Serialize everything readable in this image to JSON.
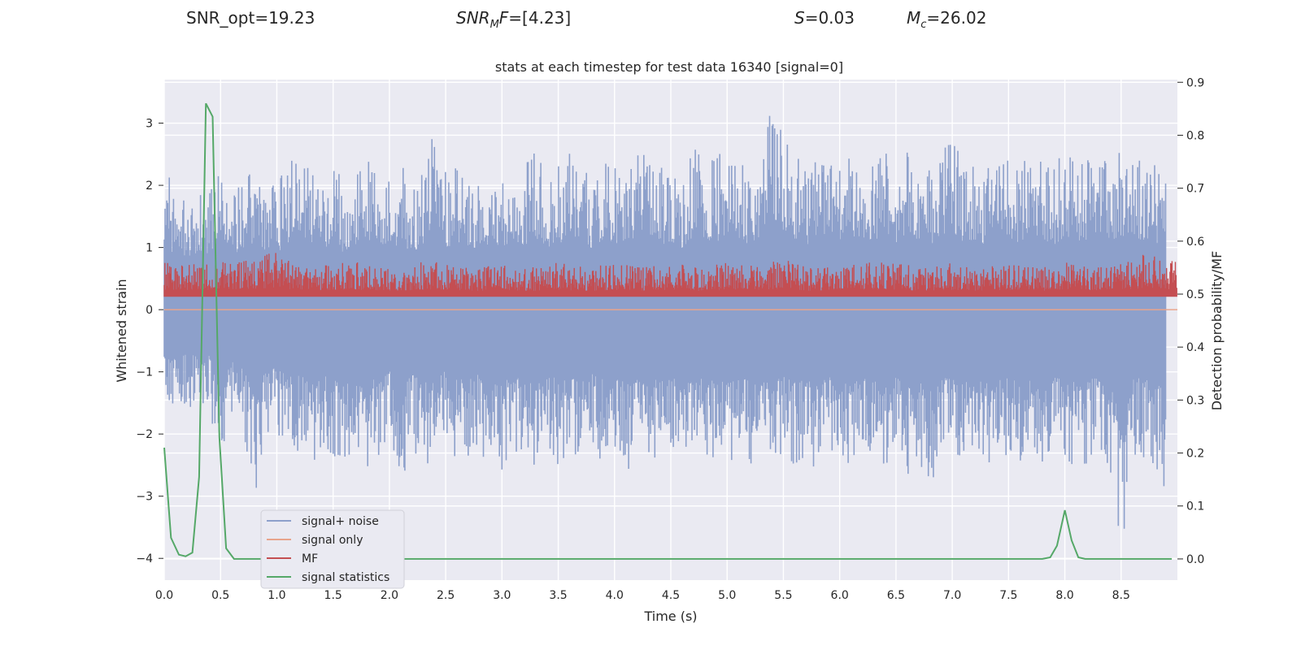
{
  "header": {
    "snr_opt": "SNR_opt=19.23",
    "snr_mf_value": "=[4.23]",
    "s_value": "=0.03",
    "mc_value": "=26.02"
  },
  "chart_data": {
    "type": "line",
    "title": "stats at each timestep for test data 16340 [signal=0]",
    "xlabel": "Time (s)",
    "ylabel": "Whitened strain",
    "y2label": "Detection probability/MF",
    "xlim": [
      0,
      9.0
    ],
    "ylim": [
      -4.35,
      3.7
    ],
    "y2lim": [
      -0.04,
      0.905
    ],
    "xticks": [
      "0.0",
      "0.5",
      "1.0",
      "1.5",
      "2.0",
      "2.5",
      "3.0",
      "3.5",
      "4.0",
      "4.5",
      "5.0",
      "5.5",
      "6.0",
      "6.5",
      "7.0",
      "7.5",
      "8.0",
      "8.5"
    ],
    "yticks": [
      "3",
      "2",
      "1",
      "0",
      "−1",
      "−2",
      "−3",
      "−4"
    ],
    "y2ticks": [
      "0.9",
      "0.8",
      "0.7",
      "0.6",
      "0.5",
      "0.4",
      "0.3",
      "0.2",
      "0.1",
      "0.0"
    ],
    "grid": true,
    "legend": "lower-left",
    "series": [
      {
        "name": "signal+ noise",
        "axis": "left",
        "color": "#8da0cb",
        "description": "dense noise band roughly between -2.5 and 2.5",
        "x": [
          0.0,
          0.1,
          0.2,
          0.3,
          0.4,
          0.5,
          0.6,
          0.7,
          0.8,
          0.9,
          1.0,
          1.1,
          1.2,
          1.3,
          1.4,
          1.5,
          1.6,
          1.7,
          1.8,
          1.9,
          2.0,
          2.1,
          2.2,
          2.3,
          2.4,
          2.5,
          2.6,
          2.7,
          2.8,
          2.9,
          3.0,
          3.1,
          3.2,
          3.3,
          3.4,
          3.5,
          3.6,
          3.7,
          3.8,
          3.9,
          4.0,
          4.1,
          4.2,
          4.3,
          4.4,
          4.5,
          4.6,
          4.7,
          4.8,
          4.9,
          5.0,
          5.1,
          5.2,
          5.3,
          5.4,
          5.5,
          5.6,
          5.7,
          5.8,
          5.9,
          6.0,
          6.1,
          6.2,
          6.3,
          6.4,
          6.5,
          6.6,
          6.7,
          6.8,
          6.9,
          7.0,
          7.1,
          7.2,
          7.3,
          7.4,
          7.5,
          7.6,
          7.7,
          7.8,
          7.9,
          8.0,
          8.1,
          8.2,
          8.3,
          8.4,
          8.5,
          8.6,
          8.7,
          8.8,
          8.9
        ],
        "upper": [
          2.4,
          1.9,
          1.9,
          2.0,
          2.0,
          2.6,
          1.8,
          2.2,
          2.3,
          2.1,
          2.0,
          2.4,
          2.6,
          2.3,
          2.1,
          2.4,
          2.0,
          2.2,
          2.5,
          2.3,
          2.1,
          2.4,
          2.0,
          2.3,
          3.25,
          2.2,
          2.4,
          2.3,
          2.1,
          2.4,
          2.2,
          2.5,
          2.3,
          2.6,
          2.1,
          2.3,
          2.7,
          2.4,
          2.2,
          2.5,
          2.4,
          2.3,
          2.6,
          2.5,
          2.3,
          2.4,
          2.2,
          2.6,
          2.5,
          2.4,
          2.7,
          2.5,
          2.3,
          2.6,
          3.35,
          2.8,
          2.5,
          2.3,
          2.4,
          2.6,
          2.5,
          2.7,
          2.3,
          2.5,
          2.6,
          2.4,
          2.7,
          2.5,
          2.3,
          2.6,
          2.8,
          2.4,
          2.5,
          2.3,
          2.6,
          2.5,
          2.4,
          2.6,
          2.5,
          2.3,
          2.6,
          2.4,
          2.5,
          2.7,
          2.3,
          2.6,
          2.4,
          2.5,
          2.4,
          2.3
        ],
        "lower": [
          -1.4,
          -1.8,
          -1.5,
          -1.7,
          -1.6,
          -2.9,
          -1.8,
          -2.0,
          -3.1,
          -2.2,
          -2.0,
          -2.4,
          -2.3,
          -2.6,
          -2.2,
          -2.5,
          -2.7,
          -2.3,
          -2.6,
          -2.4,
          -2.2,
          -2.9,
          -2.3,
          -2.6,
          -2.4,
          -2.2,
          -2.5,
          -2.4,
          -2.3,
          -2.5,
          -2.6,
          -2.4,
          -2.5,
          -2.7,
          -2.3,
          -2.5,
          -2.4,
          -2.6,
          -2.3,
          -2.5,
          -2.4,
          -2.6,
          -2.5,
          -2.3,
          -2.6,
          -2.4,
          -2.5,
          -2.6,
          -2.4,
          -2.5,
          -2.6,
          -2.4,
          -2.5,
          -2.7,
          -2.3,
          -2.4,
          -2.6,
          -2.5,
          -2.7,
          -2.4,
          -2.5,
          -2.6,
          -2.4,
          -2.5,
          -2.6,
          -2.4,
          -2.7,
          -2.5,
          -2.9,
          -2.4,
          -2.5,
          -2.6,
          -2.4,
          -2.6,
          -2.5,
          -2.4,
          -2.6,
          -2.5,
          -2.9,
          -2.4,
          -2.5,
          -2.6,
          -2.5,
          -2.4,
          -2.6,
          -4.0,
          -2.5,
          -2.4,
          -2.6,
          -2.9
        ]
      },
      {
        "name": "signal only",
        "axis": "left",
        "color": "#e8a48c",
        "x": [
          0.0,
          9.0
        ],
        "y": [
          0.0,
          0.0
        ]
      },
      {
        "name": "MF",
        "axis": "right",
        "color": "#c44e52",
        "description": "dense band roughly between 0.50 and 0.55 with spikes to 0.58",
        "x": [
          0.0,
          0.25,
          0.5,
          0.75,
          1.0,
          1.25,
          1.5,
          1.75,
          2.0,
          2.25,
          2.5,
          2.75,
          3.0,
          3.25,
          3.5,
          3.75,
          4.0,
          4.25,
          4.5,
          4.75,
          5.0,
          5.25,
          5.5,
          5.75,
          6.0,
          6.25,
          6.5,
          6.75,
          7.0,
          7.25,
          7.5,
          7.75,
          8.0,
          8.25,
          8.5,
          8.75,
          9.0
        ],
        "upper": [
          0.56,
          0.56,
          0.56,
          0.57,
          0.58,
          0.55,
          0.56,
          0.56,
          0.55,
          0.56,
          0.56,
          0.55,
          0.56,
          0.55,
          0.56,
          0.55,
          0.56,
          0.55,
          0.56,
          0.55,
          0.56,
          0.56,
          0.57,
          0.55,
          0.56,
          0.56,
          0.56,
          0.55,
          0.56,
          0.55,
          0.56,
          0.55,
          0.56,
          0.55,
          0.56,
          0.58,
          0.56
        ],
        "lower": [
          0.495,
          0.495,
          0.495,
          0.495,
          0.495,
          0.495,
          0.495,
          0.495,
          0.495,
          0.495,
          0.495,
          0.495,
          0.495,
          0.495,
          0.495,
          0.495,
          0.495,
          0.495,
          0.495,
          0.495,
          0.495,
          0.495,
          0.495,
          0.495,
          0.495,
          0.495,
          0.495,
          0.495,
          0.495,
          0.495,
          0.495,
          0.495,
          0.495,
          0.495,
          0.495,
          0.495,
          0.495
        ]
      },
      {
        "name": "signal statistics",
        "axis": "right",
        "color": "#55a868",
        "x": [
          0.0,
          0.06,
          0.13,
          0.19,
          0.25,
          0.31,
          0.37,
          0.43,
          0.49,
          0.55,
          0.62,
          1.0,
          2.0,
          3.0,
          4.0,
          5.0,
          6.0,
          7.0,
          7.7,
          7.8,
          7.87,
          7.93,
          8.0,
          8.06,
          8.12,
          8.18,
          8.3,
          8.5,
          8.95
        ],
        "y": [
          0.21,
          0.04,
          0.008,
          0.005,
          0.012,
          0.155,
          0.86,
          0.835,
          0.23,
          0.02,
          0.0,
          0.0,
          0.0,
          0.0,
          0.0,
          0.0,
          0.0,
          0.0,
          0.0,
          0.0,
          0.003,
          0.025,
          0.092,
          0.035,
          0.003,
          0.0,
          0.0,
          0.0,
          0.0
        ]
      }
    ]
  }
}
